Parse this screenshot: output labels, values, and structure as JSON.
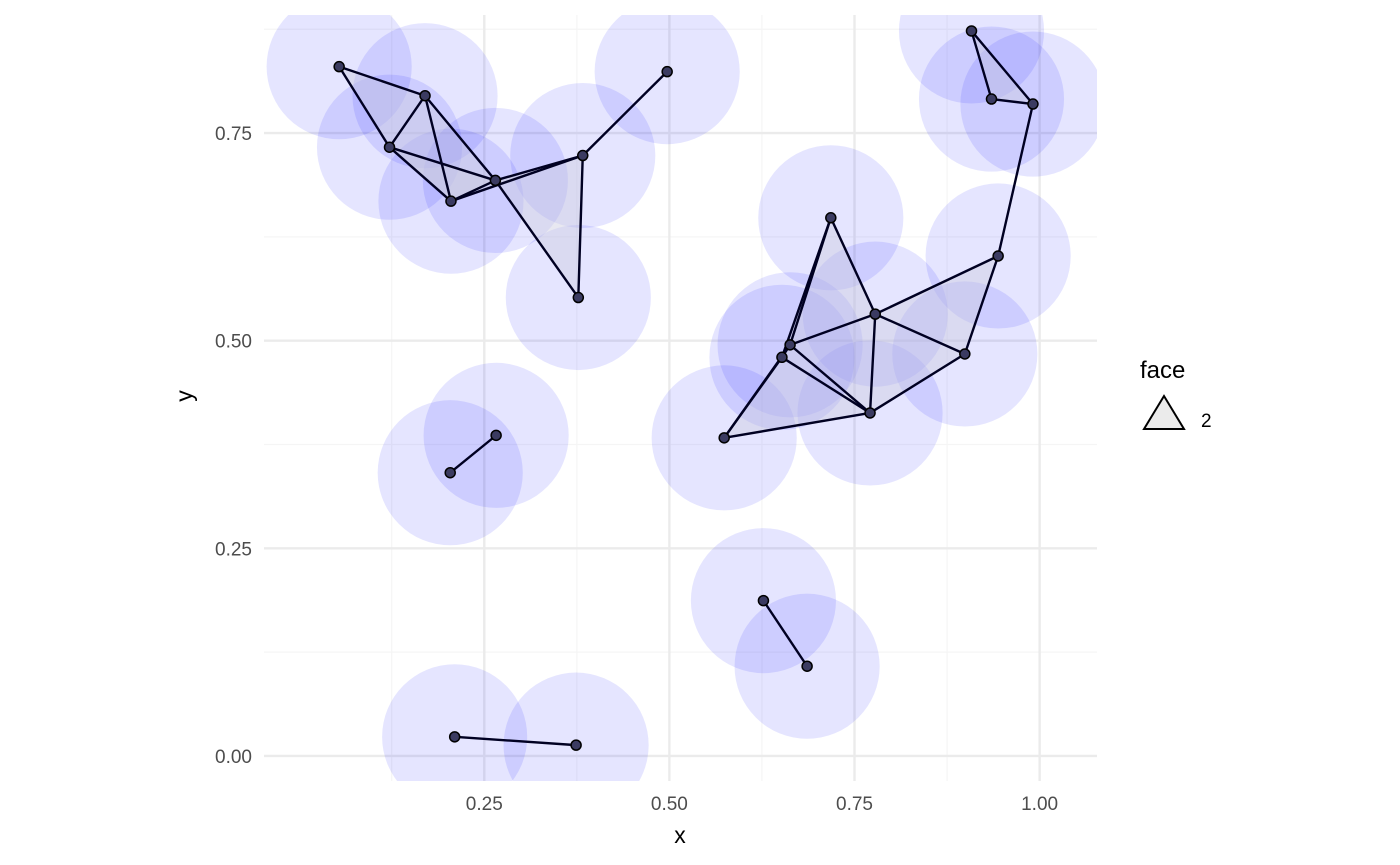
{
  "chart_data": {
    "type": "scatter",
    "title": "",
    "xlabel": "x",
    "ylabel": "y",
    "xlim": [
      -0.0475,
      1.0775
    ],
    "ylim": [
      -0.0302,
      0.8922
    ],
    "x_ticks": [
      0.25,
      0.5,
      0.75,
      1.0
    ],
    "x_tick_labels": [
      "0.25",
      "0.50",
      "0.75",
      "1.00"
    ],
    "y_ticks": [
      0.0,
      0.25,
      0.5,
      0.75
    ],
    "y_tick_labels": [
      "0.00",
      "0.25",
      "0.50",
      "0.75"
    ],
    "grid": true,
    "circle_radius": 0.098,
    "colors": {
      "circle_fill": "#0000ff",
      "point_fill": "#3b3b61",
      "edge": "#000022",
      "face_fill": "#cccce0",
      "grid_major": "#ebebeb",
      "grid_minor": "#f5f5f5"
    },
    "points": [
      {
        "x": 0.054,
        "y": 0.83
      },
      {
        "x": 0.17,
        "y": 0.795
      },
      {
        "x": 0.122,
        "y": 0.733
      },
      {
        "x": 0.205,
        "y": 0.668
      },
      {
        "x": 0.265,
        "y": 0.693
      },
      {
        "x": 0.383,
        "y": 0.723
      },
      {
        "x": 0.377,
        "y": 0.552
      },
      {
        "x": 0.497,
        "y": 0.824
      },
      {
        "x": 0.204,
        "y": 0.341
      },
      {
        "x": 0.266,
        "y": 0.386
      },
      {
        "x": 0.21,
        "y": 0.023
      },
      {
        "x": 0.374,
        "y": 0.013
      },
      {
        "x": 0.627,
        "y": 0.187
      },
      {
        "x": 0.686,
        "y": 0.108
      },
      {
        "x": 0.574,
        "y": 0.383
      },
      {
        "x": 0.652,
        "y": 0.48
      },
      {
        "x": 0.663,
        "y": 0.495
      },
      {
        "x": 0.718,
        "y": 0.648
      },
      {
        "x": 0.778,
        "y": 0.532
      },
      {
        "x": 0.771,
        "y": 0.413
      },
      {
        "x": 0.899,
        "y": 0.484
      },
      {
        "x": 0.944,
        "y": 0.602
      },
      {
        "x": 0.908,
        "y": 0.873
      },
      {
        "x": 0.935,
        "y": 0.791
      },
      {
        "x": 0.991,
        "y": 0.785
      }
    ],
    "edges": [
      [
        0,
        1
      ],
      [
        0,
        2
      ],
      [
        1,
        2
      ],
      [
        1,
        3
      ],
      [
        1,
        4
      ],
      [
        2,
        3
      ],
      [
        2,
        4
      ],
      [
        3,
        4
      ],
      [
        3,
        5
      ],
      [
        4,
        5
      ],
      [
        4,
        6
      ],
      [
        5,
        6
      ],
      [
        5,
        7
      ],
      [
        8,
        9
      ],
      [
        10,
        11
      ],
      [
        12,
        13
      ],
      [
        14,
        15
      ],
      [
        14,
        16
      ],
      [
        14,
        19
      ],
      [
        15,
        16
      ],
      [
        15,
        17
      ],
      [
        15,
        19
      ],
      [
        16,
        17
      ],
      [
        16,
        18
      ],
      [
        16,
        19
      ],
      [
        17,
        18
      ],
      [
        18,
        19
      ],
      [
        18,
        20
      ],
      [
        18,
        21
      ],
      [
        19,
        20
      ],
      [
        20,
        21
      ],
      [
        21,
        24
      ],
      [
        22,
        23
      ],
      [
        22,
        24
      ],
      [
        23,
        24
      ]
    ],
    "faces": [
      [
        0,
        1,
        2
      ],
      [
        1,
        2,
        3
      ],
      [
        2,
        3,
        4
      ],
      [
        1,
        3,
        4
      ],
      [
        3,
        4,
        5
      ],
      [
        4,
        5,
        6
      ],
      [
        14,
        15,
        19
      ],
      [
        15,
        16,
        19
      ],
      [
        15,
        16,
        17
      ],
      [
        16,
        17,
        18
      ],
      [
        16,
        18,
        19
      ],
      [
        18,
        20,
        21
      ],
      [
        18,
        19,
        20
      ],
      [
        22,
        23,
        24
      ]
    ],
    "legend": {
      "title": "face",
      "entries": [
        {
          "label": "2"
        }
      ],
      "placement": "right"
    }
  }
}
